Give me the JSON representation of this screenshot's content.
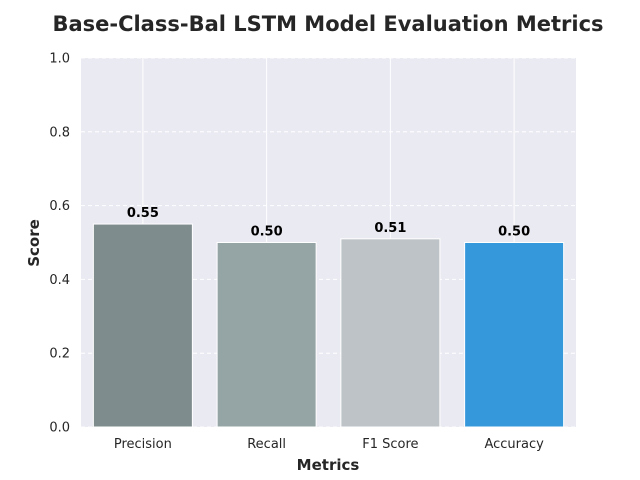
{
  "chart_data": {
    "type": "bar",
    "title": "Base-Class-Bal LSTM Model Evaluation Metrics",
    "xlabel": "Metrics",
    "ylabel": "Score",
    "categories": [
      "Precision",
      "Recall",
      "F1 Score",
      "Accuracy"
    ],
    "values": [
      0.55,
      0.5,
      0.51,
      0.5
    ],
    "value_labels": [
      "0.55",
      "0.50",
      "0.51",
      "0.50"
    ],
    "bar_colors": [
      "#7f8c8d",
      "#95a5a6",
      "#bdc3c7",
      "#3498db"
    ],
    "ylim": [
      0,
      1.0
    ],
    "yticks": [
      "0.0",
      "0.2",
      "0.4",
      "0.6",
      "0.8",
      "1.0"
    ],
    "grid": true,
    "background_color": "#eaeaf2"
  }
}
